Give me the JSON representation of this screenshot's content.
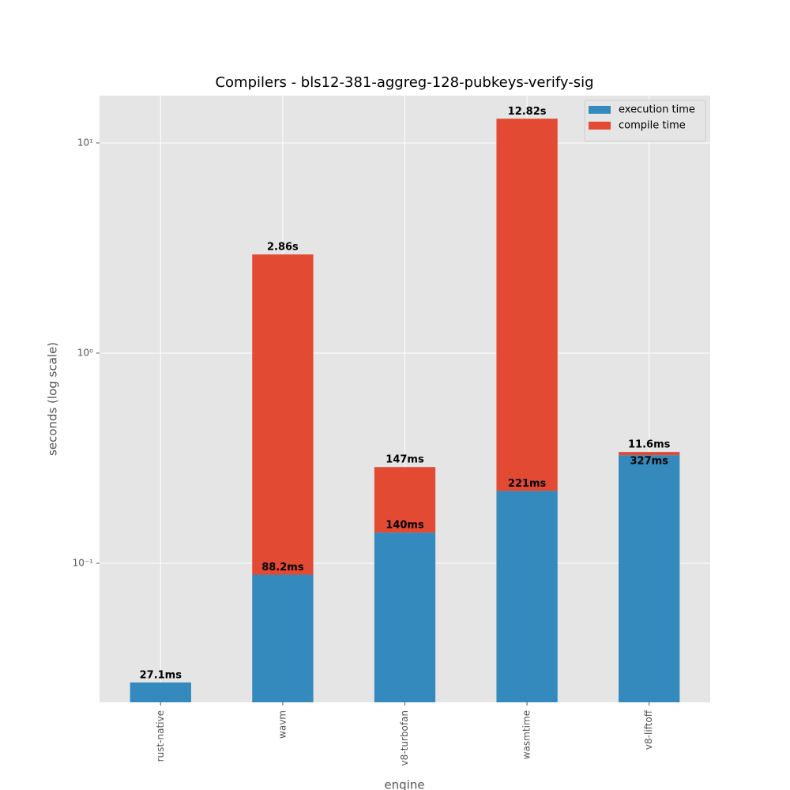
{
  "chart_data": {
    "type": "bar",
    "stacked": true,
    "title": "Compilers - bls12-381-aggreg-128-pubkeys-verify-sig",
    "x_label": "engine",
    "y_label": "seconds (log scale)",
    "categories": [
      "rust-native",
      "wavm",
      "v8-turbofan",
      "wasmtime",
      "v8-liftoff"
    ],
    "series": [
      {
        "name": "execution time",
        "color": "#348abd",
        "values": [
          0.0271,
          0.0882,
          0.14,
          0.221,
          0.327
        ],
        "value_labels": [
          "27.1ms",
          "88.2ms",
          "140ms",
          "221ms",
          "327ms"
        ]
      },
      {
        "name": "compile time",
        "color": "#e24a33",
        "values": [
          null,
          2.86,
          0.147,
          12.82,
          0.0116
        ],
        "value_labels": [
          null,
          "2.86s",
          "147ms",
          "12.82s",
          "11.6ms"
        ]
      }
    ],
    "log_scale": true,
    "ylim": [
      0.0218,
      16.8
    ],
    "yticks": [
      {
        "value": 0.1,
        "label": "10⁻¹"
      },
      {
        "value": 1,
        "label": "10⁰"
      },
      {
        "value": 10,
        "label": "10¹"
      }
    ],
    "grid": true,
    "legend": "upper right"
  }
}
